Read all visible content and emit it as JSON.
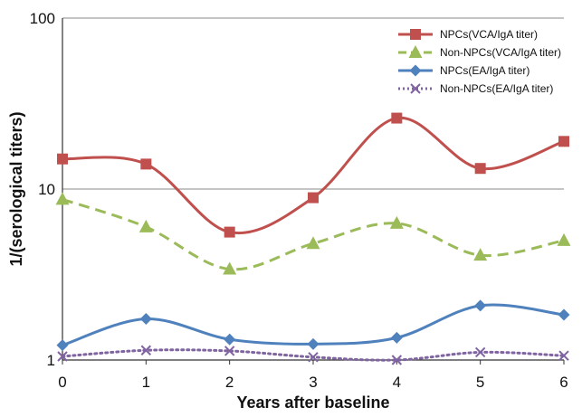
{
  "chart_data": {
    "type": "line",
    "title": "",
    "xlabel": "Years after baseline",
    "ylabel": "1/(serological titers)",
    "y_scale": "log",
    "ylim": [
      1,
      100
    ],
    "xlim": [
      0,
      6
    ],
    "x": [
      0,
      1,
      2,
      3,
      4,
      5,
      6
    ],
    "x_tick_labels": [
      "0",
      "1",
      "2",
      "3",
      "4",
      "5",
      "6"
    ],
    "y_tick_labels": [
      "1",
      "10",
      "100"
    ],
    "grid": "horizontal major gridlines at 10 and 100",
    "legend_position": "top-right",
    "series": [
      {
        "name": "NPCs(VCA/IgA titer)",
        "color": "#c0504d",
        "line": "solid",
        "marker": "square",
        "values": [
          15,
          14,
          5.6,
          8.9,
          26,
          13.2,
          19
        ]
      },
      {
        "name": "Non-NPCs(VCA/IgA titer)",
        "color": "#9bbb59",
        "line": "dashed",
        "marker": "triangle",
        "values": [
          8.7,
          6,
          3.4,
          4.8,
          6.3,
          4.1,
          5
        ]
      },
      {
        "name": "NPCs(EA/IgA titer)",
        "color": "#4f81bd",
        "line": "solid",
        "marker": "diamond",
        "values": [
          1.22,
          1.74,
          1.32,
          1.24,
          1.35,
          2.08,
          1.84
        ]
      },
      {
        "name": "Non-NPCs(EA/IgA titer)",
        "color": "#8064a2",
        "line": "dotted",
        "marker": "x",
        "values": [
          1.05,
          1.14,
          1.13,
          1.04,
          1.0,
          1.11,
          1.06
        ]
      }
    ]
  }
}
